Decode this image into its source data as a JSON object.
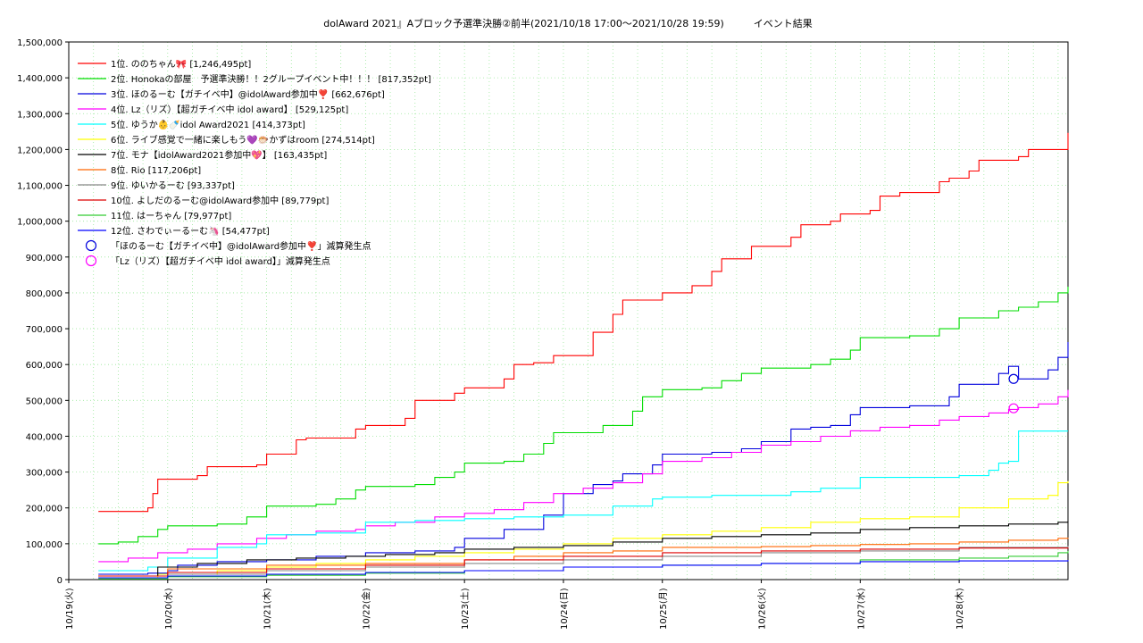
{
  "chart_data": {
    "type": "line",
    "title": "dolAward 2021』Aブロック予選準決勝②前半(2021/10/18 17:00～2021/10/28 19:59)　　　イベント結果",
    "xlabel": "",
    "ylabel": "",
    "x_unit": "days since 2021-10-19 00:00",
    "xlim": [
      0,
      10.1
    ],
    "ylim": [
      0,
      1500000
    ],
    "yticks": [
      0,
      100000,
      200000,
      300000,
      400000,
      500000,
      600000,
      700000,
      800000,
      900000,
      1000000,
      1100000,
      1200000,
      1300000,
      1400000,
      1500000
    ],
    "ytick_labels": [
      "0",
      "100,000",
      "200,000",
      "300,000",
      "400,000",
      "500,000",
      "600,000",
      "700,000",
      "800,000",
      "900,000",
      "1,000,000",
      "1,100,000",
      "1,200,000",
      "1,300,000",
      "1,400,000",
      "1,500,000"
    ],
    "xticks": [
      0,
      1,
      2,
      3,
      4,
      5,
      6,
      7,
      8,
      9
    ],
    "xtick_labels": [
      "10/19(火)",
      "10/20(水)",
      "10/21(木)",
      "10/22(金)",
      "10/23(土)",
      "10/24(日)",
      "10/25(月)",
      "10/26(火)",
      "10/27(水)",
      "10/28(木)"
    ],
    "grid": true,
    "legend_position": "top-left",
    "series": [
      {
        "name": "1位. ののちゃん🎀 [1,246,495pt]",
        "color": "#ff0000",
        "x": [
          0.3,
          0.8,
          0.85,
          0.9,
          1.3,
          1.4,
          1.9,
          2.0,
          2.3,
          2.4,
          2.9,
          3.0,
          3.4,
          3.5,
          3.9,
          4.0,
          4.4,
          4.5,
          4.7,
          4.9,
          5.3,
          5.5,
          5.6,
          5.9,
          6.0,
          6.3,
          6.5,
          6.6,
          6.9,
          7.0,
          7.3,
          7.4,
          7.7,
          7.8,
          8.1,
          8.2,
          8.4,
          8.5,
          8.8,
          8.9,
          9.1,
          9.2,
          9.6,
          9.7,
          10.1
        ],
        "y": [
          190000,
          200000,
          240000,
          280000,
          290000,
          315000,
          320000,
          350000,
          390000,
          395000,
          420000,
          430000,
          450000,
          500000,
          520000,
          535000,
          560000,
          600000,
          605000,
          625000,
          690000,
          740000,
          780000,
          780000,
          800000,
          820000,
          860000,
          895000,
          930000,
          930000,
          955000,
          990000,
          1000000,
          1020000,
          1030000,
          1070000,
          1080000,
          1080000,
          1110000,
          1120000,
          1140000,
          1170000,
          1180000,
          1200000,
          1246495
        ]
      },
      {
        "name": "2位. Honokaの部屋　予選準決勝！！2グループイベント中！！！ [817,352pt]",
        "color": "#00dd00",
        "x": [
          0.3,
          0.5,
          0.7,
          0.9,
          1.0,
          1.5,
          1.8,
          2.0,
          2.5,
          2.7,
          2.9,
          3.0,
          3.5,
          3.7,
          3.9,
          4.0,
          4.4,
          4.6,
          4.8,
          4.9,
          5.4,
          5.7,
          5.8,
          6.0,
          6.4,
          6.6,
          6.8,
          7.0,
          7.5,
          7.7,
          7.9,
          8.0,
          8.5,
          8.8,
          9.0,
          9.4,
          9.6,
          9.8,
          10.0,
          10.1
        ],
        "y": [
          100000,
          105000,
          120000,
          140000,
          150000,
          155000,
          175000,
          205000,
          210000,
          225000,
          250000,
          260000,
          265000,
          285000,
          300000,
          325000,
          330000,
          350000,
          380000,
          410000,
          430000,
          470000,
          510000,
          530000,
          535000,
          555000,
          575000,
          590000,
          600000,
          615000,
          640000,
          675000,
          680000,
          700000,
          730000,
          750000,
          760000,
          775000,
          800000,
          817352
        ]
      },
      {
        "name": "3位. ほのるーむ【ガチイベ中】@idolAward参加中❣️ [662,676pt]",
        "color": "#0000dd",
        "x": [
          0.3,
          0.8,
          1.0,
          1.1,
          1.5,
          2.0,
          2.5,
          3.0,
          3.5,
          3.9,
          4.0,
          4.4,
          4.8,
          5.0,
          5.3,
          5.5,
          5.6,
          5.9,
          6.0,
          6.5,
          6.8,
          7.0,
          7.3,
          7.5,
          7.7,
          7.9,
          8.0,
          8.5,
          8.9,
          9.0,
          9.4,
          9.5,
          9.6,
          9.9,
          10.0,
          10.1
        ],
        "y": [
          15000,
          18000,
          25000,
          40000,
          50000,
          55000,
          65000,
          75000,
          80000,
          90000,
          115000,
          140000,
          180000,
          240000,
          265000,
          275000,
          295000,
          320000,
          350000,
          355000,
          365000,
          385000,
          420000,
          425000,
          430000,
          460000,
          480000,
          485000,
          510000,
          545000,
          575000,
          595000,
          560000,
          585000,
          620000,
          662676
        ]
      },
      {
        "name": "4位. Lz（リズ）【超ガチイベ中 idol award】 [529,125pt]",
        "color": "#ff00ff",
        "x": [
          0.3,
          0.6,
          0.9,
          1.2,
          1.5,
          1.9,
          2.2,
          2.5,
          2.9,
          3.0,
          3.3,
          3.7,
          4.0,
          4.3,
          4.6,
          4.9,
          5.2,
          5.5,
          5.8,
          6.0,
          6.4,
          6.7,
          7.0,
          7.3,
          7.6,
          7.9,
          8.2,
          8.5,
          8.8,
          9.0,
          9.3,
          9.5,
          9.6,
          9.8,
          10.0,
          10.1
        ],
        "y": [
          50000,
          60000,
          75000,
          85000,
          100000,
          115000,
          125000,
          135000,
          140000,
          150000,
          160000,
          175000,
          185000,
          195000,
          215000,
          240000,
          255000,
          270000,
          295000,
          330000,
          340000,
          355000,
          375000,
          385000,
          400000,
          415000,
          425000,
          430000,
          445000,
          455000,
          465000,
          475000,
          480000,
          490000,
          510000,
          529125
        ]
      },
      {
        "name": "5位. ゆうか👶🍼idol Award2021 [414,373pt]",
        "color": "#00ffff",
        "x": [
          0.3,
          0.8,
          1.0,
          1.5,
          1.9,
          2.0,
          2.5,
          2.9,
          3.0,
          3.5,
          4.0,
          4.5,
          5.0,
          5.5,
          5.9,
          6.0,
          6.5,
          7.0,
          7.3,
          7.6,
          8.0,
          8.5,
          9.0,
          9.3,
          9.4,
          9.5,
          9.6,
          10.1
        ],
        "y": [
          25000,
          35000,
          60000,
          90000,
          100000,
          125000,
          130000,
          130000,
          160000,
          165000,
          170000,
          175000,
          180000,
          205000,
          225000,
          230000,
          235000,
          235000,
          245000,
          255000,
          285000,
          285000,
          290000,
          305000,
          325000,
          330000,
          414373,
          414373
        ]
      },
      {
        "name": "6位. ライブ感覚で一緒に楽しもう💜🐡かずはroom [274,514pt]",
        "color": "#ffff00",
        "x": [
          0.3,
          0.9,
          1.5,
          2.0,
          2.5,
          3.0,
          3.5,
          4.0,
          4.5,
          5.0,
          5.5,
          6.0,
          6.5,
          7.0,
          7.5,
          8.0,
          8.5,
          9.0,
          9.5,
          9.9,
          10.0,
          10.1
        ],
        "y": [
          5000,
          15000,
          25000,
          35000,
          45000,
          55000,
          65000,
          75000,
          85000,
          100000,
          115000,
          125000,
          135000,
          145000,
          160000,
          170000,
          175000,
          200000,
          225000,
          235000,
          270000,
          274514
        ]
      },
      {
        "name": "7位. モナ【idolAward2021参加中💖】 [163,435pt]",
        "color": "#000000",
        "x": [
          0.3,
          0.9,
          1.3,
          1.8,
          2.3,
          2.8,
          3.2,
          3.7,
          4.0,
          4.5,
          5.0,
          5.5,
          6.0,
          6.5,
          7.0,
          7.5,
          8.0,
          8.5,
          9.0,
          9.5,
          10.0,
          10.1
        ],
        "y": [
          10000,
          35000,
          45000,
          55000,
          60000,
          65000,
          70000,
          75000,
          85000,
          90000,
          95000,
          105000,
          115000,
          120000,
          125000,
          130000,
          140000,
          145000,
          150000,
          155000,
          160000,
          163435
        ]
      },
      {
        "name": "8位. Rio [117,206pt]",
        "color": "#ff6600",
        "x": [
          0.3,
          1.0,
          2.0,
          3.0,
          4.0,
          4.5,
          5.0,
          5.5,
          6.0,
          7.0,
          7.5,
          8.0,
          8.5,
          9.0,
          9.5,
          10.0,
          10.1
        ],
        "y": [
          10000,
          30000,
          40000,
          45000,
          55000,
          65000,
          75000,
          80000,
          90000,
          92000,
          95000,
          98000,
          100000,
          105000,
          110000,
          115000,
          117206
        ]
      },
      {
        "name": "9位. ゆいかるーむ [93,337pt]",
        "color": "#888888",
        "x": [
          0.3,
          1.0,
          2.0,
          3.0,
          4.0,
          5.0,
          6.0,
          7.0,
          8.0,
          9.0,
          10.1
        ],
        "y": [
          5000,
          15000,
          25000,
          35000,
          45000,
          55000,
          65000,
          75000,
          80000,
          90000,
          93337
        ]
      },
      {
        "name": "10位. よしだのるーむ@idolAward参加中 [89,779pt]",
        "color": "#dd0000",
        "x": [
          0.3,
          1.0,
          2.0,
          3.0,
          4.0,
          5.0,
          6.0,
          7.0,
          8.0,
          9.0,
          10.1
        ],
        "y": [
          10000,
          20000,
          30000,
          40000,
          55000,
          65000,
          75000,
          80000,
          85000,
          88000,
          89779
        ]
      },
      {
        "name": "11位. はーちゃん [79,977pt]",
        "color": "#33cc33",
        "x": [
          0.3,
          1.0,
          2.0,
          3.0,
          4.0,
          5.0,
          6.0,
          7.0,
          8.0,
          9.0,
          9.5,
          10.0,
          10.1
        ],
        "y": [
          2000,
          8000,
          12000,
          18000,
          25000,
          35000,
          40000,
          45000,
          55000,
          60000,
          65000,
          75000,
          79977
        ]
      },
      {
        "name": "12位. さわでぃーるーむ🦄 [54,477pt]",
        "color": "#0000ff",
        "x": [
          0.3,
          1.0,
          2.0,
          3.0,
          4.0,
          5.0,
          6.0,
          7.0,
          8.0,
          9.0,
          10.1
        ],
        "y": [
          5000,
          10000,
          15000,
          20000,
          25000,
          35000,
          40000,
          45000,
          50000,
          52000,
          54477
        ]
      }
    ],
    "markers": [
      {
        "name": "「ほのるーむ【ガチイベ中】@idolAward参加中❣️」減算発生点",
        "color": "#0000dd",
        "x": 9.55,
        "y": 560000
      },
      {
        "name": "「Lz（リズ）【超ガチイベ中 idol award】」減算発生点",
        "color": "#ff00ff",
        "x": 9.55,
        "y": 478000
      }
    ]
  }
}
